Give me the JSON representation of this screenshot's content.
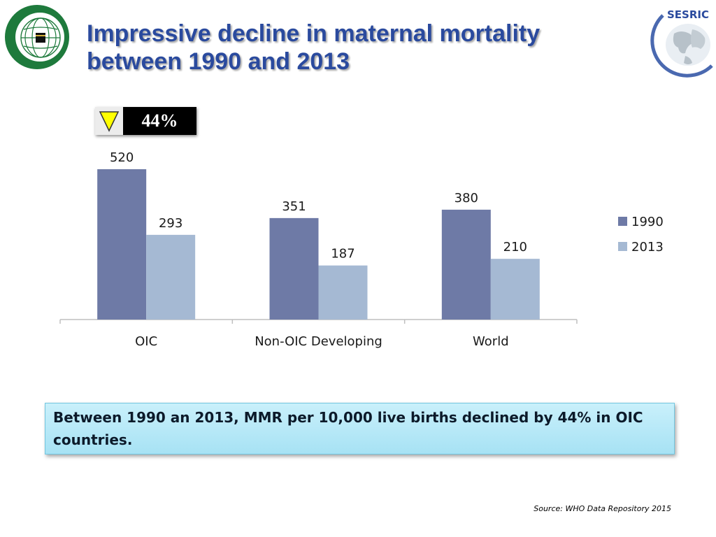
{
  "header": {
    "title_line1": "Impressive decline in maternal mortality",
    "title_line2": "between 1990 and 2013",
    "logo_left": "oic-globe-logo",
    "logo_right_text": "SESRIC"
  },
  "badge": {
    "icon": "down-triangle-icon",
    "value": "44%"
  },
  "chart_data": {
    "type": "bar",
    "title": "",
    "xlabel": "",
    "ylabel": "",
    "categories": [
      "OIC",
      "Non-OIC Developing",
      "World"
    ],
    "series": [
      {
        "name": "1990",
        "values": [
          520,
          351,
          380
        ],
        "color": "#6e7aa6"
      },
      {
        "name": "2013",
        "values": [
          293,
          187,
          210
        ],
        "color": "#a5b9d3"
      }
    ],
    "ylim": [
      0,
      520
    ],
    "grid": false,
    "legend": "right",
    "data_labels": true
  },
  "callout": {
    "text": "Between 1990 an 2013, MMR per 10,000 live births declined by 44% in OIC  countries."
  },
  "source": "Source: WHO Data Repository 2015",
  "colors": {
    "title": "#2a4a9e",
    "oic_green": "#1e7a3c",
    "bar_1990": "#6e7aa6",
    "bar_2013": "#a5b9d3",
    "callout_bg": "#b8e9f8",
    "badge_arrow": "#ffff00"
  }
}
